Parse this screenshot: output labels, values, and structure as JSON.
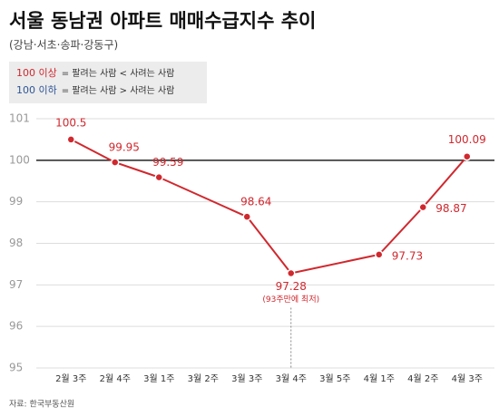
{
  "chart_data": {
    "type": "line",
    "title": "서울 동남권 아파트 매매수급지수 추이",
    "subtitle": "(강남·서초·송파·강동구)",
    "legend": [
      {
        "label": "100 이상",
        "color": "#d0282e",
        "text": "= 팔려는 사람 < 사려는 사람"
      },
      {
        "label": "100 이하",
        "color": "#2f5597",
        "text": "= 팔려는 사람 > 사려는 사람"
      }
    ],
    "categories": [
      "2월 3주",
      "2월 4주",
      "3월 1주",
      "3월 2주",
      "3월 3주",
      "3월 4주",
      "3월 5주",
      "4월 1주",
      "4월 2주",
      "4월 3주"
    ],
    "series": [
      {
        "name": "매매수급지수",
        "color": "#d0282e",
        "values": [
          100.5,
          99.95,
          99.59,
          null,
          98.64,
          97.28,
          null,
          97.73,
          98.87,
          100.09
        ]
      }
    ],
    "ylim": [
      95,
      101
    ],
    "yticks": [
      95,
      96,
      97,
      98,
      99,
      100,
      101
    ],
    "grid": true,
    "reference_line": 100,
    "annotation": "(93주만에 최저)",
    "source": "자료: 한국부동산원"
  }
}
